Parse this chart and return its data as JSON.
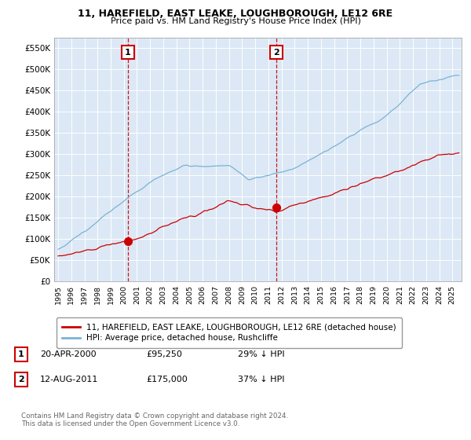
{
  "title": "11, HAREFIELD, EAST LEAKE, LOUGHBOROUGH, LE12 6RE",
  "subtitle": "Price paid vs. HM Land Registry's House Price Index (HPI)",
  "ylim": [
    0,
    575000
  ],
  "yticks": [
    0,
    50000,
    100000,
    150000,
    200000,
    250000,
    300000,
    350000,
    400000,
    450000,
    500000,
    550000
  ],
  "sale1_year": 2000.302,
  "sale1_price": 95250,
  "sale2_year": 2011.616,
  "sale2_price": 175000,
  "hpi_color": "#7ab3d4",
  "sale_color": "#cc0000",
  "bg_color": "#dce8f5",
  "grid_color": "#b8cfe0",
  "legend_label_sale": "11, HAREFIELD, EAST LEAKE, LOUGHBOROUGH, LE12 6RE (detached house)",
  "legend_label_hpi": "HPI: Average price, detached house, Rushcliffe",
  "footer": "Contains HM Land Registry data © Crown copyright and database right 2024.\nThis data is licensed under the Open Government Licence v3.0.",
  "xstart": 1995.0,
  "xend": 2025.5
}
